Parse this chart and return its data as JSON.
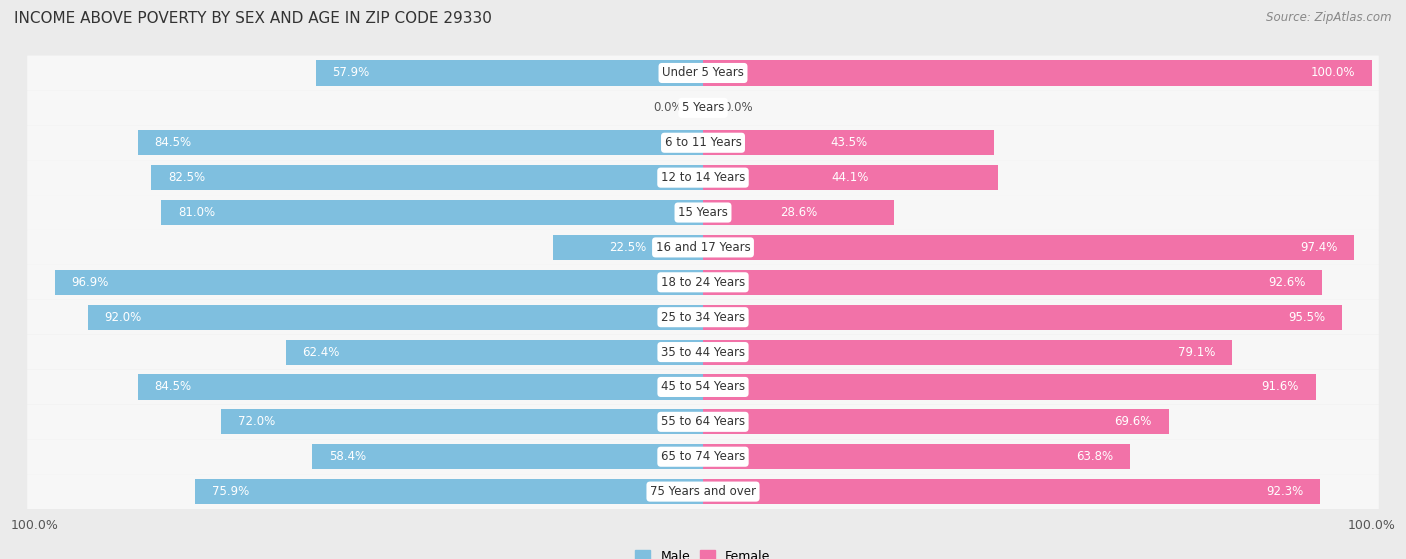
{
  "title": "INCOME ABOVE POVERTY BY SEX AND AGE IN ZIP CODE 29330",
  "source": "Source: ZipAtlas.com",
  "categories": [
    "Under 5 Years",
    "5 Years",
    "6 to 11 Years",
    "12 to 14 Years",
    "15 Years",
    "16 and 17 Years",
    "18 to 24 Years",
    "25 to 34 Years",
    "35 to 44 Years",
    "45 to 54 Years",
    "55 to 64 Years",
    "65 to 74 Years",
    "75 Years and over"
  ],
  "male_values": [
    57.9,
    0.0,
    84.5,
    82.5,
    81.0,
    22.5,
    96.9,
    92.0,
    62.4,
    84.5,
    72.0,
    58.4,
    75.9
  ],
  "female_values": [
    100.0,
    0.0,
    43.5,
    44.1,
    28.6,
    97.4,
    92.6,
    95.5,
    79.1,
    91.6,
    69.6,
    63.8,
    92.3
  ],
  "male_color": "#7fbfdf",
  "female_color": "#f272a8",
  "male_color_light": "#c5dff0",
  "female_color_light": "#f9b8d4",
  "background_color": "#ebebeb",
  "bar_background_color": "#f7f7f7",
  "title_fontsize": 11,
  "label_fontsize": 8.5,
  "value_fontsize": 8.5,
  "tick_fontsize": 9,
  "source_fontsize": 8.5
}
